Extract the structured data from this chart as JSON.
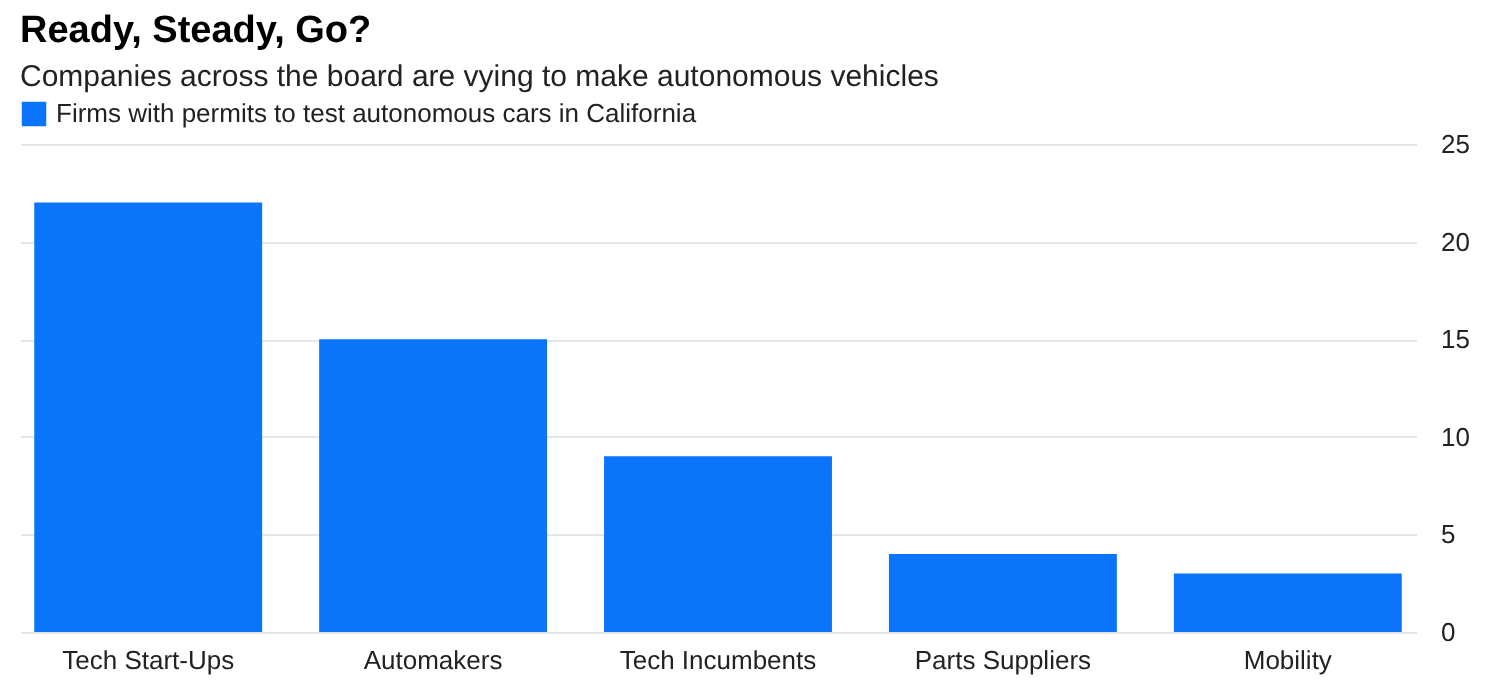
{
  "chart_data": {
    "type": "bar",
    "title": "Ready, Steady, Go?",
    "subtitle": "Companies across the board are vying to make autonomous vehicles",
    "categories": [
      "Tech Start-Ups",
      "Automakers",
      "Tech Incumbents",
      "Parts Suppliers",
      "Mobility"
    ],
    "series": [
      {
        "name": "Firms with permits to test autonomous cars in California",
        "color": "#0a74fb",
        "values": [
          22,
          15,
          9,
          4,
          3
        ]
      }
    ],
    "ylim": [
      0,
      25
    ],
    "yticks": [
      0,
      5,
      10,
      15,
      20,
      25
    ],
    "grid": "y",
    "legend": "top left"
  }
}
